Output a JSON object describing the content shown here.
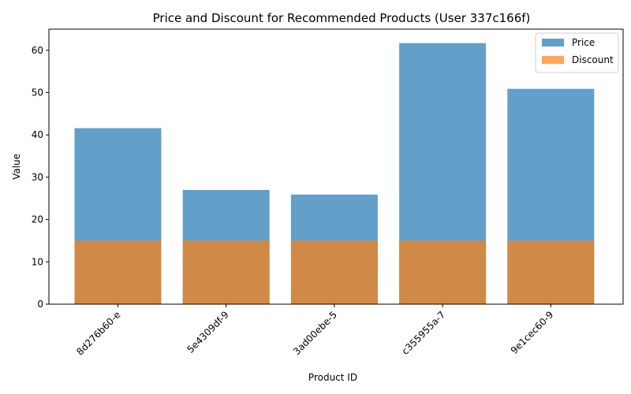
{
  "chart_data": {
    "type": "bar",
    "title": "Price and Discount for Recommended Products (User 337c166f)",
    "xlabel": "Product ID",
    "ylabel": "Value",
    "categories": [
      "8d276b60-e",
      "5e4309df-9",
      "3ad00ebe-5",
      "c355955a-7",
      "9e1cec60-9"
    ],
    "series": [
      {
        "name": "Price",
        "values": [
          41.6,
          27.0,
          25.9,
          61.7,
          50.9
        ],
        "color": "#1f77b4",
        "opacity": 0.7
      },
      {
        "name": "Discount",
        "values": [
          15,
          15,
          15,
          15,
          15
        ],
        "color": "#ff7f0e",
        "opacity": 0.7
      }
    ],
    "ylim": [
      0,
      65
    ],
    "yticks": [
      0,
      10,
      20,
      30,
      40,
      50,
      60
    ],
    "overlay": true,
    "grid": false,
    "legend_position": "top-right"
  }
}
